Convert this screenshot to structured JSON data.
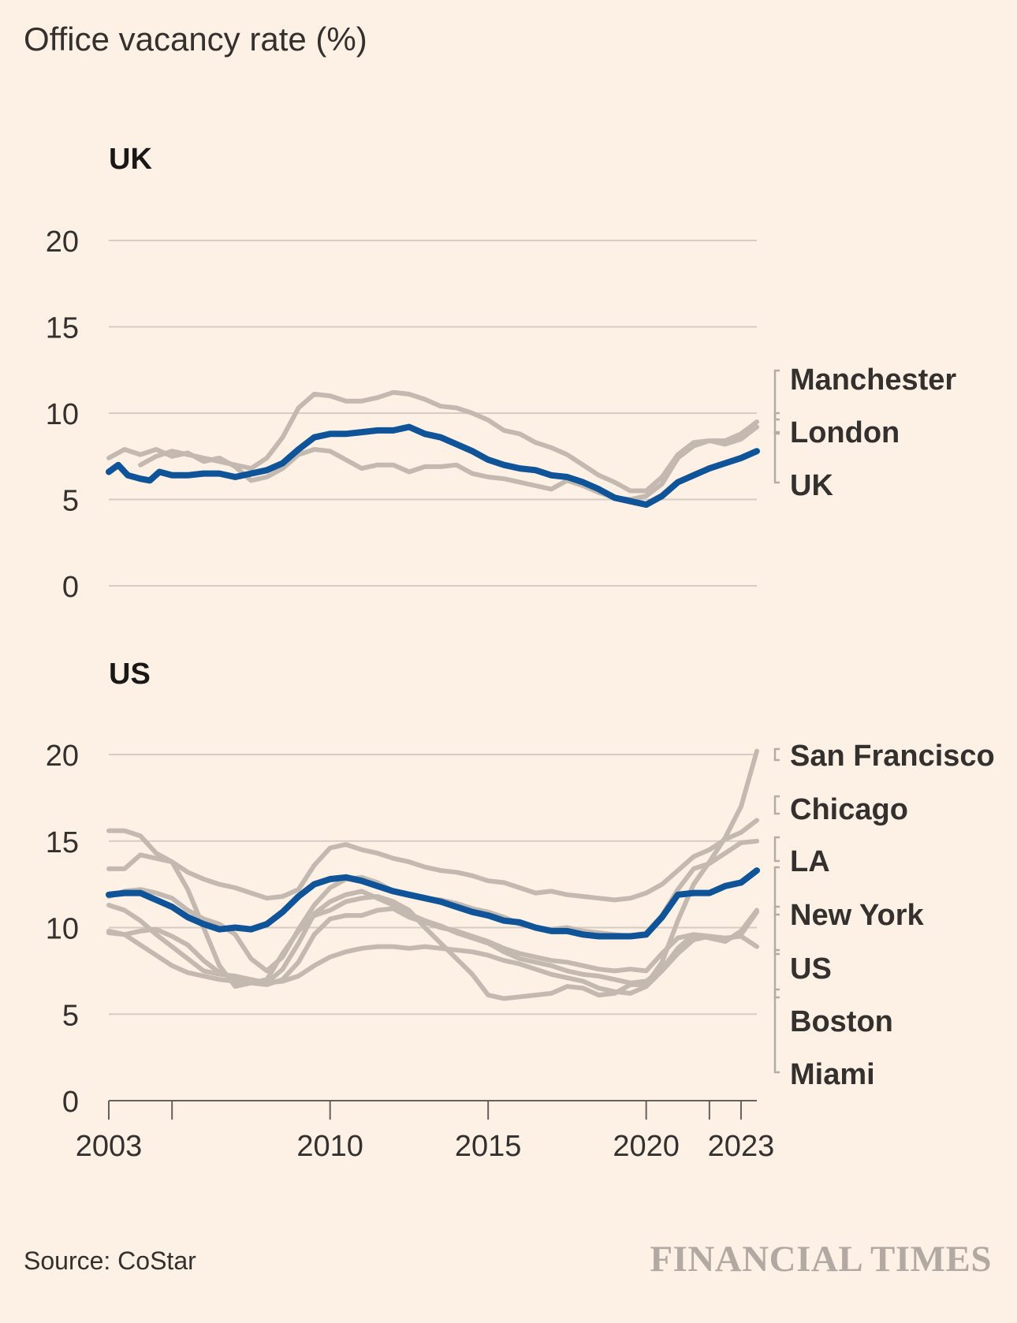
{
  "title": "Office vacancy rate (%)",
  "source": "Source: CoStar",
  "brand": "FINANCIAL TIMES",
  "colors": {
    "background": "#FDF1E6",
    "highlight": "#0F5499",
    "other_series": "#C4B9B0",
    "grid": "#D5CCC3",
    "text": "#33302E"
  },
  "chart_data": [
    {
      "type": "line",
      "title": "UK",
      "xlabel": "",
      "ylabel": "Office vacancy rate (%)",
      "xlim": [
        2003,
        2023.5
      ],
      "ylim": [
        0,
        20
      ],
      "yticks": [
        0,
        5,
        10,
        15,
        20
      ],
      "grid": true,
      "legend": "direct labels, right",
      "highlight": "UK",
      "series": [
        {
          "name": "Manchester",
          "x": [
            2004.0,
            2004.5,
            2005.0,
            2005.5,
            2006.0,
            2006.5,
            2007.0,
            2007.5,
            2008.0,
            2008.5,
            2009.0,
            2009.5,
            2010.0,
            2010.5,
            2011.0,
            2011.5,
            2012.0,
            2012.5,
            2013.0,
            2013.5,
            2014.0,
            2014.5,
            2015.0,
            2015.5,
            2016.0,
            2016.5,
            2017.0,
            2017.5,
            2018.0,
            2018.5,
            2019.0,
            2019.5,
            2020.0,
            2020.5,
            2021.0,
            2021.5,
            2022.0,
            2022.5,
            2023.0,
            2023.5
          ],
          "values": [
            7.0,
            7.5,
            7.8,
            7.6,
            7.4,
            7.2,
            7.0,
            6.8,
            7.4,
            8.6,
            10.3,
            11.1,
            11.0,
            10.7,
            10.7,
            10.9,
            11.2,
            11.1,
            10.8,
            10.4,
            10.3,
            10.0,
            9.6,
            9.0,
            8.8,
            8.3,
            8.0,
            7.6,
            7.0,
            6.4,
            6.0,
            5.5,
            5.5,
            6.3,
            7.6,
            8.3,
            8.4,
            8.4,
            8.8,
            9.5
          ]
        },
        {
          "name": "London",
          "x": [
            2003.0,
            2003.5,
            2004.0,
            2004.5,
            2005.0,
            2005.5,
            2006.0,
            2006.5,
            2007.0,
            2007.5,
            2008.0,
            2008.5,
            2009.0,
            2009.5,
            2010.0,
            2010.5,
            2011.0,
            2011.5,
            2012.0,
            2012.5,
            2013.0,
            2013.5,
            2014.0,
            2014.5,
            2015.0,
            2015.5,
            2016.0,
            2016.5,
            2017.0,
            2017.5,
            2018.0,
            2018.5,
            2019.0,
            2019.5,
            2020.0,
            2020.5,
            2021.0,
            2021.5,
            2022.0,
            2022.5,
            2023.0,
            2023.5
          ],
          "values": [
            7.4,
            7.9,
            7.6,
            7.9,
            7.5,
            7.7,
            7.2,
            7.4,
            6.9,
            6.1,
            6.3,
            6.8,
            7.6,
            7.9,
            7.8,
            7.3,
            6.8,
            7.0,
            7.0,
            6.6,
            6.9,
            6.9,
            7.0,
            6.5,
            6.3,
            6.2,
            6.0,
            5.8,
            5.6,
            6.1,
            5.8,
            5.4,
            5.1,
            5.0,
            5.2,
            5.9,
            7.4,
            8.1,
            8.4,
            8.2,
            8.5,
            9.2
          ]
        },
        {
          "name": "UK",
          "x": [
            2003.0,
            2003.3,
            2003.6,
            2004.0,
            2004.3,
            2004.6,
            2005.0,
            2005.5,
            2006.0,
            2006.5,
            2007.0,
            2007.5,
            2008.0,
            2008.5,
            2009.0,
            2009.5,
            2010.0,
            2010.5,
            2011.0,
            2011.5,
            2012.0,
            2012.5,
            2013.0,
            2013.5,
            2014.0,
            2014.5,
            2015.0,
            2015.5,
            2016.0,
            2016.5,
            2017.0,
            2017.5,
            2018.0,
            2018.5,
            2019.0,
            2019.5,
            2020.0,
            2020.5,
            2021.0,
            2021.5,
            2022.0,
            2022.5,
            2023.0,
            2023.5
          ],
          "values": [
            6.6,
            7.0,
            6.4,
            6.2,
            6.1,
            6.6,
            6.4,
            6.4,
            6.5,
            6.5,
            6.3,
            6.5,
            6.7,
            7.1,
            7.9,
            8.6,
            8.8,
            8.8,
            8.9,
            9.0,
            9.0,
            9.2,
            8.8,
            8.6,
            8.2,
            7.8,
            7.3,
            7.0,
            6.8,
            6.7,
            6.4,
            6.3,
            6.0,
            5.6,
            5.1,
            4.9,
            4.7,
            5.2,
            6.0,
            6.4,
            6.8,
            7.1,
            7.4,
            7.8
          ]
        }
      ],
      "labels": [
        "Manchester",
        "London",
        "UK"
      ]
    },
    {
      "type": "line",
      "title": "US",
      "xlabel": "",
      "ylabel": "Office vacancy rate (%)",
      "xlim": [
        2003,
        2023.5
      ],
      "ylim": [
        0,
        20
      ],
      "yticks": [
        0,
        5,
        10,
        15,
        20
      ],
      "xticks": [
        2003,
        2010,
        2015,
        2020,
        2023
      ],
      "xticklabels": [
        "2003",
        "2010",
        "2015",
        "2020",
        "2023"
      ],
      "minor_xticks": [
        2005,
        2022
      ],
      "grid": true,
      "legend": "direct labels, right",
      "highlight": "US",
      "series": [
        {
          "name": "San Francisco",
          "x": [
            2003.0,
            2003.5,
            2004.0,
            2004.5,
            2005.0,
            2005.5,
            2006.0,
            2006.5,
            2007.0,
            2007.5,
            2008.0,
            2008.5,
            2009.0,
            2009.5,
            2010.0,
            2010.5,
            2011.0,
            2011.5,
            2012.0,
            2012.5,
            2013.0,
            2013.5,
            2014.0,
            2014.5,
            2015.0,
            2015.5,
            2016.0,
            2016.5,
            2017.0,
            2017.5,
            2018.0,
            2018.5,
            2019.0,
            2019.5,
            2020.0,
            2020.5,
            2021.0,
            2021.5,
            2022.0,
            2022.5,
            2023.0,
            2023.5
          ],
          "values": [
            15.6,
            15.6,
            15.3,
            14.3,
            13.8,
            12.2,
            10.0,
            7.8,
            6.6,
            6.8,
            7.0,
            8.5,
            9.8,
            10.7,
            11.0,
            11.5,
            11.7,
            11.8,
            11.5,
            11.0,
            10.0,
            9.1,
            8.2,
            7.3,
            6.1,
            5.9,
            6.0,
            6.1,
            6.2,
            6.6,
            6.5,
            6.1,
            6.2,
            6.7,
            6.7,
            8.0,
            10.4,
            12.5,
            13.8,
            15.2,
            17.0,
            20.2
          ]
        },
        {
          "name": "Chicago",
          "x": [
            2003.0,
            2003.5,
            2004.0,
            2004.5,
            2005.0,
            2005.5,
            2006.0,
            2006.5,
            2007.0,
            2007.5,
            2008.0,
            2008.5,
            2009.0,
            2009.5,
            2010.0,
            2010.5,
            2011.0,
            2011.5,
            2012.0,
            2012.5,
            2013.0,
            2013.5,
            2014.0,
            2014.5,
            2015.0,
            2015.5,
            2016.0,
            2016.5,
            2017.0,
            2017.5,
            2018.0,
            2018.5,
            2019.0,
            2019.5,
            2020.0,
            2020.5,
            2021.0,
            2021.5,
            2022.0,
            2022.5,
            2023.0,
            2023.5
          ],
          "values": [
            13.4,
            13.4,
            14.2,
            14.0,
            13.8,
            13.2,
            12.8,
            12.5,
            12.3,
            12.0,
            11.7,
            11.8,
            12.2,
            13.6,
            14.6,
            14.8,
            14.5,
            14.3,
            14.0,
            13.8,
            13.5,
            13.3,
            13.2,
            13.0,
            12.7,
            12.6,
            12.3,
            12.0,
            12.1,
            11.9,
            11.8,
            11.7,
            11.6,
            11.7,
            12.0,
            12.5,
            13.3,
            14.1,
            14.5,
            15.1,
            15.5,
            16.2
          ]
        },
        {
          "name": "LA",
          "x": [
            2003.0,
            2003.5,
            2004.0,
            2004.5,
            2005.0,
            2005.5,
            2006.0,
            2006.5,
            2007.0,
            2007.5,
            2008.0,
            2008.5,
            2009.0,
            2009.5,
            2010.0,
            2010.5,
            2011.0,
            2011.5,
            2012.0,
            2012.5,
            2013.0,
            2013.5,
            2014.0,
            2014.5,
            2015.0,
            2015.5,
            2016.0,
            2016.5,
            2017.0,
            2017.5,
            2018.0,
            2018.5,
            2019.0,
            2019.5,
            2020.0,
            2020.5,
            2021.0,
            2021.5,
            2022.0,
            2022.5,
            2023.0,
            2023.5
          ],
          "values": [
            11.8,
            12.1,
            12.2,
            12.0,
            11.7,
            11.0,
            10.5,
            10.2,
            9.6,
            8.2,
            7.5,
            8.3,
            9.9,
            11.3,
            12.3,
            12.8,
            12.9,
            12.6,
            12.1,
            11.9,
            11.7,
            11.6,
            11.4,
            11.1,
            10.9,
            10.6,
            10.2,
            10.0,
            9.9,
            10.0,
            9.8,
            9.7,
            9.6,
            9.5,
            9.7,
            10.7,
            12.2,
            13.4,
            13.7,
            14.3,
            14.9,
            15.0
          ]
        },
        {
          "name": "New York",
          "x": [
            2003.0,
            2003.5,
            2004.0,
            2004.5,
            2005.0,
            2005.5,
            2006.0,
            2006.5,
            2007.0,
            2007.5,
            2008.0,
            2008.5,
            2009.0,
            2009.5,
            2010.0,
            2010.5,
            2011.0,
            2011.5,
            2012.0,
            2012.5,
            2013.0,
            2013.5,
            2014.0,
            2014.5,
            2015.0,
            2015.5,
            2016.0,
            2016.5,
            2017.0,
            2017.5,
            2018.0,
            2018.5,
            2019.0,
            2019.5,
            2020.0,
            2020.5,
            2021.0,
            2021.5,
            2022.0,
            2022.5,
            2023.0,
            2023.5
          ],
          "values": [
            9.7,
            9.6,
            9.8,
            9.9,
            9.5,
            9.0,
            8.1,
            7.4,
            7.1,
            6.8,
            6.7,
            7.0,
            8.0,
            9.6,
            10.5,
            10.7,
            10.7,
            11.0,
            11.1,
            10.6,
            10.3,
            10.0,
            9.8,
            9.5,
            9.2,
            8.8,
            8.5,
            8.3,
            8.1,
            8.0,
            7.8,
            7.6,
            7.5,
            7.6,
            7.5,
            8.5,
            9.4,
            9.6,
            9.5,
            9.4,
            9.5,
            8.9
          ]
        },
        {
          "name": "US",
          "x": [
            2003.0,
            2003.5,
            2004.0,
            2004.5,
            2005.0,
            2005.5,
            2006.0,
            2006.5,
            2007.0,
            2007.5,
            2008.0,
            2008.5,
            2009.0,
            2009.5,
            2010.0,
            2010.5,
            2011.0,
            2011.5,
            2012.0,
            2012.5,
            2013.0,
            2013.5,
            2014.0,
            2014.5,
            2015.0,
            2015.5,
            2016.0,
            2016.5,
            2017.0,
            2017.5,
            2018.0,
            2018.5,
            2019.0,
            2019.5,
            2020.0,
            2020.5,
            2021.0,
            2021.5,
            2022.0,
            2022.5,
            2023.0,
            2023.5
          ],
          "values": [
            11.9,
            12.0,
            12.0,
            11.6,
            11.2,
            10.6,
            10.2,
            9.9,
            10.0,
            9.9,
            10.2,
            10.9,
            11.8,
            12.5,
            12.8,
            12.9,
            12.7,
            12.4,
            12.1,
            11.9,
            11.7,
            11.5,
            11.2,
            10.9,
            10.7,
            10.4,
            10.3,
            10.0,
            9.8,
            9.8,
            9.6,
            9.5,
            9.5,
            9.5,
            9.6,
            10.6,
            11.9,
            12.0,
            12.0,
            12.4,
            12.6,
            13.3
          ]
        },
        {
          "name": "Boston",
          "x": [
            2003.0,
            2003.5,
            2004.0,
            2004.5,
            2005.0,
            2005.5,
            2006.0,
            2006.5,
            2007.0,
            2007.5,
            2008.0,
            2008.5,
            2009.0,
            2009.5,
            2010.0,
            2010.5,
            2011.0,
            2011.5,
            2012.0,
            2012.5,
            2013.0,
            2013.5,
            2014.0,
            2014.5,
            2015.0,
            2015.5,
            2016.0,
            2016.5,
            2017.0,
            2017.5,
            2018.0,
            2018.5,
            2019.0,
            2019.5,
            2020.0,
            2020.5,
            2021.0,
            2021.5,
            2022.0,
            2022.5,
            2023.0,
            2023.5
          ],
          "values": [
            11.3,
            11.0,
            10.4,
            9.6,
            8.9,
            8.2,
            7.5,
            7.3,
            7.2,
            7.0,
            6.8,
            7.6,
            9.1,
            10.8,
            11.5,
            11.9,
            12.1,
            11.7,
            11.3,
            10.8,
            10.4,
            10.1,
            9.7,
            9.4,
            9.1,
            8.6,
            8.2,
            8.0,
            7.8,
            7.5,
            7.3,
            7.2,
            7.0,
            6.8,
            6.9,
            7.6,
            8.8,
            9.6,
            9.4,
            9.2,
            9.8,
            11.0
          ]
        },
        {
          "name": "Miami",
          "x": [
            2003.0,
            2003.5,
            2004.0,
            2004.5,
            2005.0,
            2005.5,
            2006.0,
            2006.5,
            2007.0,
            2007.5,
            2008.0,
            2008.5,
            2009.0,
            2009.5,
            2010.0,
            2010.5,
            2011.0,
            2011.5,
            2012.0,
            2012.5,
            2013.0,
            2013.5,
            2014.0,
            2014.5,
            2015.0,
            2015.5,
            2016.0,
            2016.5,
            2017.0,
            2017.5,
            2018.0,
            2018.5,
            2019.0,
            2019.5,
            2020.0,
            2020.5,
            2021.0,
            2021.5,
            2022.0,
            2022.5,
            2023.0,
            2023.5
          ],
          "values": [
            9.8,
            9.6,
            9.0,
            8.4,
            7.8,
            7.4,
            7.2,
            7.0,
            6.9,
            6.8,
            6.8,
            6.9,
            7.2,
            7.8,
            8.3,
            8.6,
            8.8,
            8.9,
            8.9,
            8.8,
            8.9,
            8.8,
            8.7,
            8.6,
            8.4,
            8.1,
            7.9,
            7.6,
            7.3,
            7.1,
            6.9,
            6.5,
            6.3,
            6.2,
            6.6,
            7.5,
            8.5,
            9.3,
            9.5,
            9.3,
            9.6,
            10.9
          ]
        }
      ],
      "labels": [
        "San Francisco",
        "Chicago",
        "LA",
        "New York",
        "US",
        "Boston",
        "Miami"
      ]
    }
  ]
}
